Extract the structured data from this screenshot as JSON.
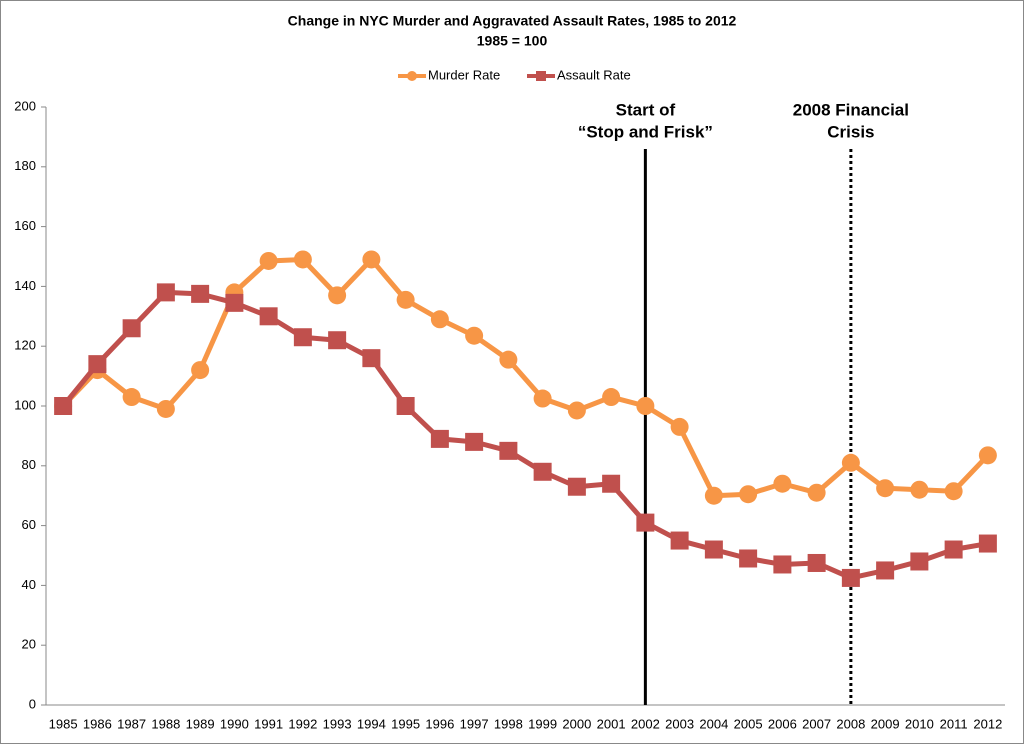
{
  "chart_data": {
    "type": "line",
    "title": "Change in NYC Murder and Aggravated Assault Rates, 1985 to 2012",
    "subtitle": "1985 = 100",
    "categories": [
      "1985",
      "1986",
      "1987",
      "1988",
      "1989",
      "1990",
      "1991",
      "1992",
      "1993",
      "1994",
      "1995",
      "1996",
      "1997",
      "1998",
      "1999",
      "2000",
      "2001",
      "2002",
      "2003",
      "2004",
      "2005",
      "2006",
      "2007",
      "2008",
      "2009",
      "2010",
      "2011",
      "2012"
    ],
    "series": [
      {
        "name": "Murder Rate",
        "color": "#f79646",
        "marker": "circle",
        "values": [
          100,
          112,
          103,
          99,
          112,
          138,
          148.5,
          149,
          137,
          149,
          135.5,
          129,
          123.5,
          115.5,
          102.5,
          98.5,
          103,
          100,
          93,
          70,
          70.5,
          74,
          71,
          81,
          72.5,
          72,
          71.5,
          83.5
        ]
      },
      {
        "name": "Assault Rate",
        "color": "#c0504d",
        "marker": "square",
        "values": [
          100,
          114,
          126,
          138,
          137.5,
          134.5,
          130,
          123,
          122,
          116,
          100,
          89,
          88,
          85,
          78,
          73,
          74,
          61,
          55,
          52,
          49,
          47,
          47.5,
          42.5,
          45,
          48,
          52,
          54
        ]
      }
    ],
    "ylim": [
      0,
      200
    ],
    "yticks": [
      0,
      20,
      40,
      60,
      80,
      100,
      120,
      140,
      160,
      180,
      200
    ],
    "grid": false,
    "legend": "top",
    "annotations": [
      {
        "text": [
          "Start of",
          "“Stop and Frisk”"
        ],
        "x": "2002",
        "line_style": "solid"
      },
      {
        "text": [
          "2008 Financial",
          "Crisis"
        ],
        "x": "2008",
        "line_style": "dotted"
      }
    ]
  }
}
